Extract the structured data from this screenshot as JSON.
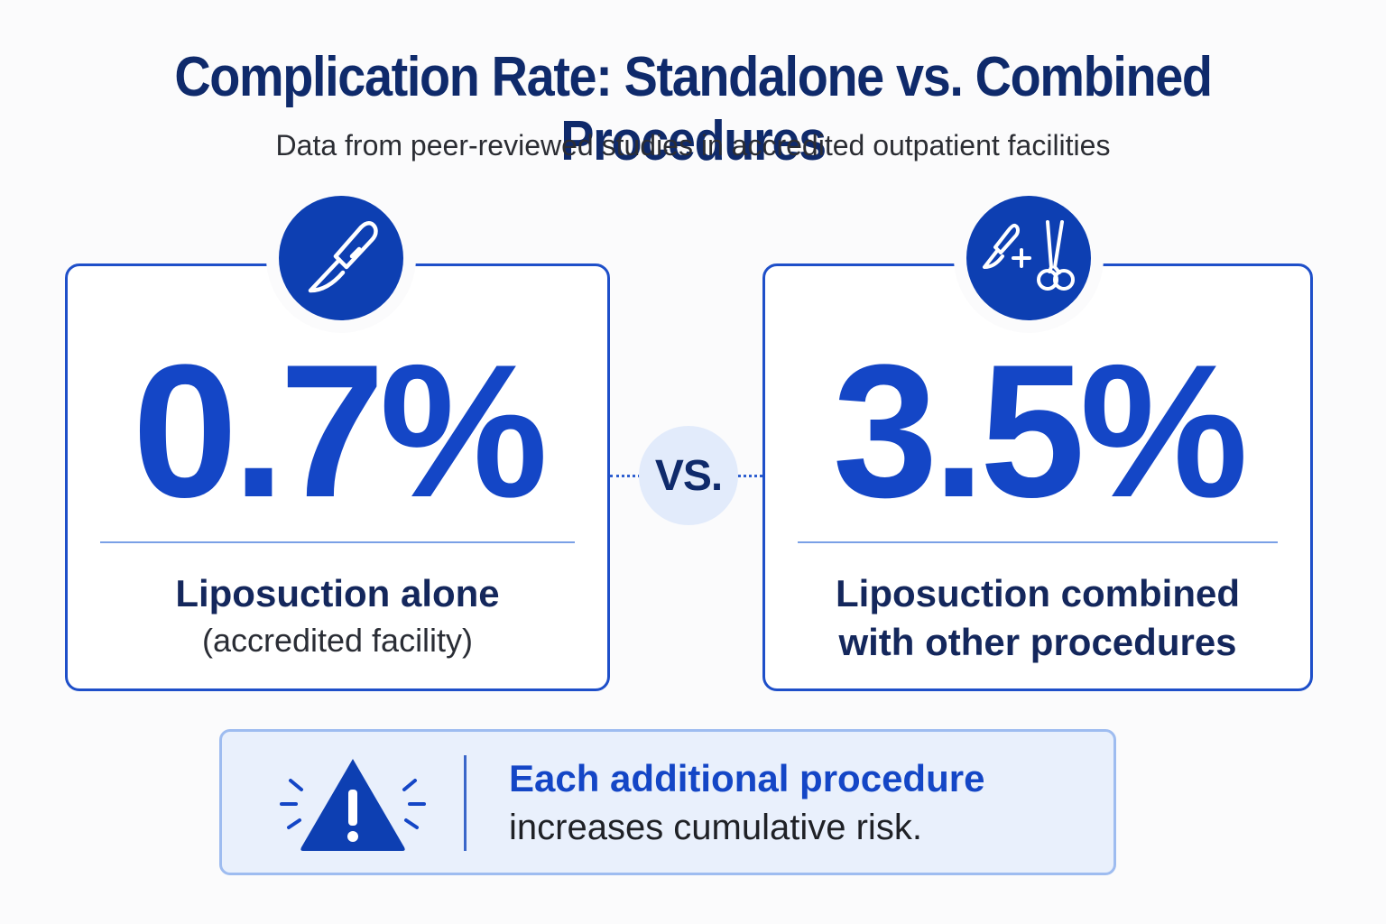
{
  "title": "Complication Rate: Standalone vs. Combined Procedures",
  "subtitle": "Data from peer-reviewed studies in accredited outpatient facilities",
  "comparison": {
    "left": {
      "icon": "scalpel-icon",
      "value": "0.7%",
      "label": "Liposuction alone",
      "sublabel": "(accredited facility)"
    },
    "vs_label": "VS.",
    "right": {
      "icon": "scalpel-plus-scissors-icon",
      "value": "3.5%",
      "label_line1": "Liposuction combined",
      "label_line2": "with other procedures"
    }
  },
  "warning": {
    "icon": "warning-triangle-icon",
    "title": "Each additional procedure",
    "text": "increases cumulative risk."
  },
  "colors": {
    "primary": "#1446c6",
    "dark_navy": "#0f2a6b",
    "badge": "#0d3fb2",
    "warning_bg": "#e9f0fc"
  }
}
